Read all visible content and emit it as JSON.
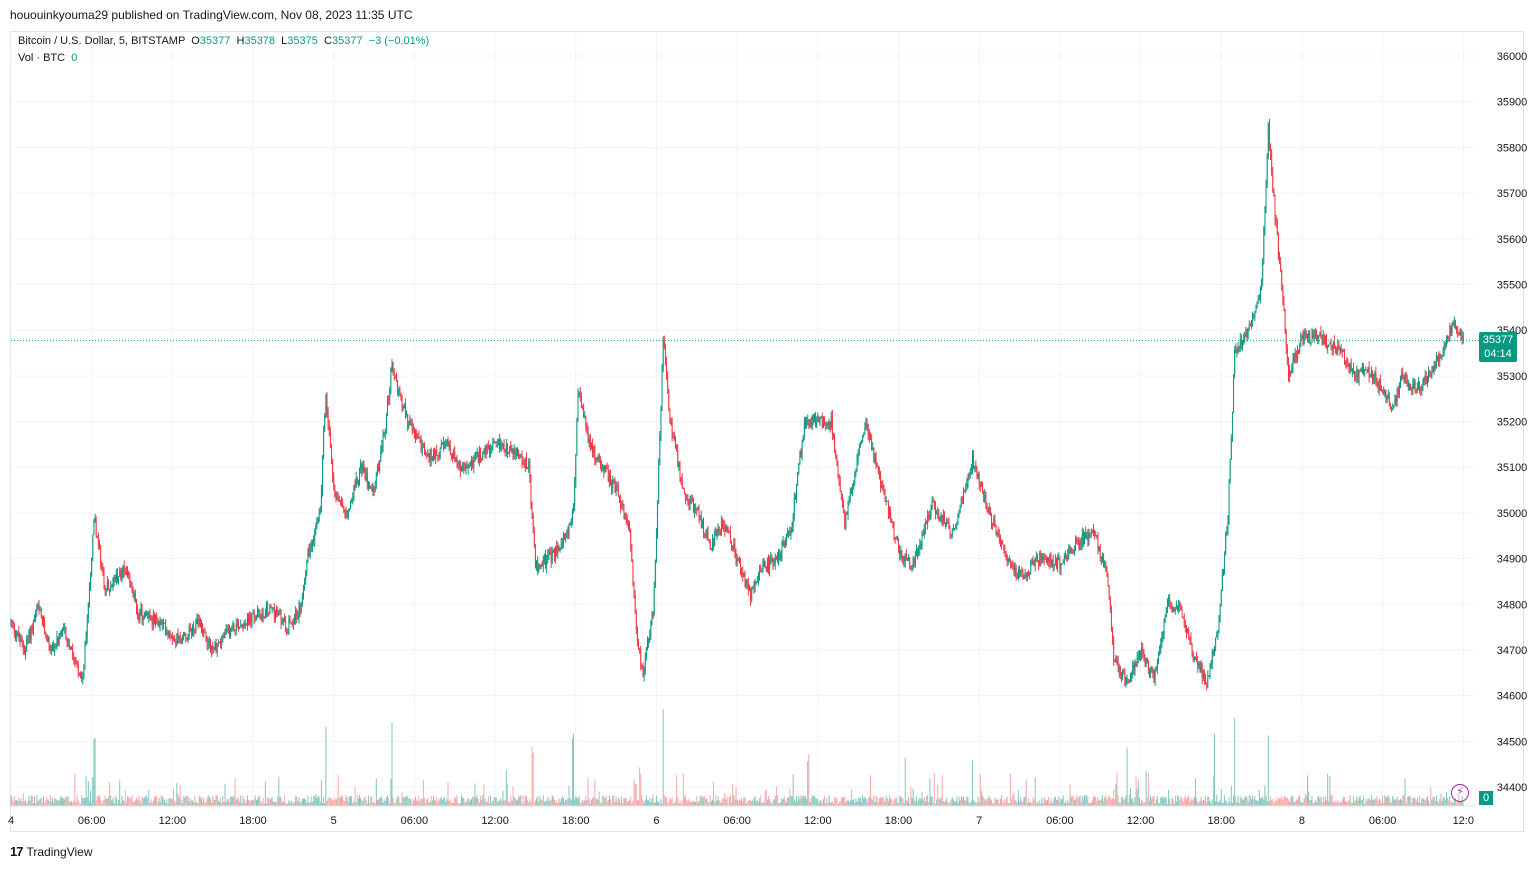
{
  "header": {
    "published": "hououinkyouma29 published on TradingView.com, Nov 08, 2023 11:35 UTC"
  },
  "legend": {
    "symbol": "Bitcoin / U.S. Dollar, 5, BITSTAMP",
    "o_label": "O",
    "o": "35377",
    "h_label": "H",
    "h": "35378",
    "l_label": "L",
    "l": "35375",
    "c_label": "C",
    "c": "35377",
    "change": "−3 (−0.01%)",
    "vol_label": "Vol · BTC",
    "vol_value": "0"
  },
  "last_price": {
    "price": "35377",
    "countdown": "04:14",
    "vol": "0"
  },
  "footer": {
    "brand": "TradingView",
    "logo_text": "17"
  },
  "colors": {
    "up": "#089981",
    "down": "#f23645",
    "vol_up": "#84c6bd",
    "vol_down": "#f7a9a7",
    "grid": "#f0f3fa"
  },
  "icons": {
    "flash": "lightning-icon"
  },
  "chart_data": {
    "type": "candlestick",
    "timeframe": "5",
    "y_ticks": [
      36000,
      35900,
      35800,
      35700,
      35600,
      35500,
      35400,
      35300,
      35200,
      35100,
      35000,
      34900,
      34800,
      34700,
      34600,
      34500,
      34400
    ],
    "ylim": [
      34375,
      36025
    ],
    "x_ticks": [
      "4",
      "06:00",
      "12:00",
      "18:00",
      "5",
      "06:00",
      "12:00",
      "18:00",
      "6",
      "06:00",
      "12:00",
      "18:00",
      "7",
      "06:00",
      "12:00",
      "18:00",
      "8",
      "06:00",
      "12:0"
    ],
    "x_tick_hours": [
      0,
      6,
      12,
      18,
      24,
      30,
      36,
      42,
      48,
      54,
      60,
      66,
      72,
      78,
      84,
      90,
      96,
      102,
      108
    ],
    "xlim_hours": [
      0,
      108.5
    ],
    "price_path": [
      [
        0,
        34760
      ],
      [
        1.0,
        34700
      ],
      [
        2.0,
        34790
      ],
      [
        3.0,
        34700
      ],
      [
        4.0,
        34740
      ],
      [
        5.3,
        34620
      ],
      [
        6.2,
        34990
      ],
      [
        7.0,
        34830
      ],
      [
        8.5,
        34880
      ],
      [
        9.5,
        34780
      ],
      [
        11.0,
        34760
      ],
      [
        12.5,
        34720
      ],
      [
        14.0,
        34760
      ],
      [
        15.0,
        34700
      ],
      [
        16.5,
        34750
      ],
      [
        18.0,
        34770
      ],
      [
        19.5,
        34790
      ],
      [
        20.5,
        34750
      ],
      [
        21.5,
        34790
      ],
      [
        22.0,
        34900
      ],
      [
        23.0,
        35000
      ],
      [
        23.4,
        35270
      ],
      [
        24.0,
        35050
      ],
      [
        25.0,
        35000
      ],
      [
        26.0,
        35100
      ],
      [
        27.0,
        35050
      ],
      [
        27.8,
        35180
      ],
      [
        28.3,
        35320
      ],
      [
        29.5,
        35200
      ],
      [
        31.0,
        35120
      ],
      [
        32.5,
        35150
      ],
      [
        33.5,
        35090
      ],
      [
        35.0,
        35130
      ],
      [
        36.5,
        35150
      ],
      [
        37.5,
        35130
      ],
      [
        38.5,
        35100
      ],
      [
        39.0,
        34880
      ],
      [
        40.0,
        34900
      ],
      [
        41.0,
        34930
      ],
      [
        41.8,
        35000
      ],
      [
        42.2,
        35270
      ],
      [
        43.0,
        35150
      ],
      [
        44.0,
        35100
      ],
      [
        45.0,
        35050
      ],
      [
        46.0,
        34960
      ],
      [
        46.5,
        34750
      ],
      [
        47.0,
        34640
      ],
      [
        47.8,
        34800
      ],
      [
        48.5,
        35380
      ],
      [
        49.0,
        35200
      ],
      [
        50.0,
        35050
      ],
      [
        51.0,
        35000
      ],
      [
        52.0,
        34930
      ],
      [
        53.0,
        34980
      ],
      [
        54.0,
        34900
      ],
      [
        55.0,
        34820
      ],
      [
        56.0,
        34880
      ],
      [
        57.0,
        34900
      ],
      [
        58.0,
        34960
      ],
      [
        59.0,
        35200
      ],
      [
        60.0,
        35200
      ],
      [
        61.0,
        35200
      ],
      [
        62.0,
        34980
      ],
      [
        63.5,
        35200
      ],
      [
        65.0,
        35030
      ],
      [
        66.0,
        34920
      ],
      [
        67.0,
        34880
      ],
      [
        68.5,
        35020
      ],
      [
        70.0,
        34950
      ],
      [
        71.5,
        35120
      ],
      [
        72.5,
        35020
      ],
      [
        74.0,
        34900
      ],
      [
        75.0,
        34860
      ],
      [
        76.5,
        34900
      ],
      [
        78.0,
        34890
      ],
      [
        79.5,
        34940
      ],
      [
        80.5,
        34960
      ],
      [
        81.5,
        34870
      ],
      [
        82.0,
        34680
      ],
      [
        83.0,
        34630
      ],
      [
        84.0,
        34700
      ],
      [
        85.0,
        34640
      ],
      [
        86.0,
        34800
      ],
      [
        87.0,
        34790
      ],
      [
        88.0,
        34680
      ],
      [
        89.0,
        34630
      ],
      [
        89.8,
        34760
      ],
      [
        90.5,
        35000
      ],
      [
        91.0,
        35350
      ],
      [
        92.0,
        35400
      ],
      [
        93.0,
        35500
      ],
      [
        93.5,
        35840
      ],
      [
        94.0,
        35650
      ],
      [
        94.5,
        35500
      ],
      [
        95.0,
        35300
      ],
      [
        96.0,
        35380
      ],
      [
        97.0,
        35390
      ],
      [
        98.0,
        35370
      ],
      [
        99.0,
        35350
      ],
      [
        100.0,
        35300
      ],
      [
        101.0,
        35310
      ],
      [
        102.0,
        35270
      ],
      [
        102.8,
        35230
      ],
      [
        103.5,
        35300
      ],
      [
        104.5,
        35270
      ],
      [
        105.5,
        35300
      ],
      [
        106.5,
        35360
      ],
      [
        107.3,
        35420
      ],
      [
        108.0,
        35377
      ]
    ],
    "volume_spikes_btc": [
      [
        6.2,
        30
      ],
      [
        23.4,
        35
      ],
      [
        28.3,
        40
      ],
      [
        38.8,
        28
      ],
      [
        41.8,
        32
      ],
      [
        46.8,
        18
      ],
      [
        48.5,
        45
      ],
      [
        59.3,
        24
      ],
      [
        66.5,
        20
      ],
      [
        71.5,
        22
      ],
      [
        83.0,
        32
      ],
      [
        89.5,
        34
      ],
      [
        91.0,
        38
      ],
      [
        93.5,
        30
      ]
    ],
    "last": {
      "open": 35377,
      "high": 35378,
      "low": 35375,
      "close": 35377,
      "change": -3,
      "change_pct": -0.01
    }
  }
}
